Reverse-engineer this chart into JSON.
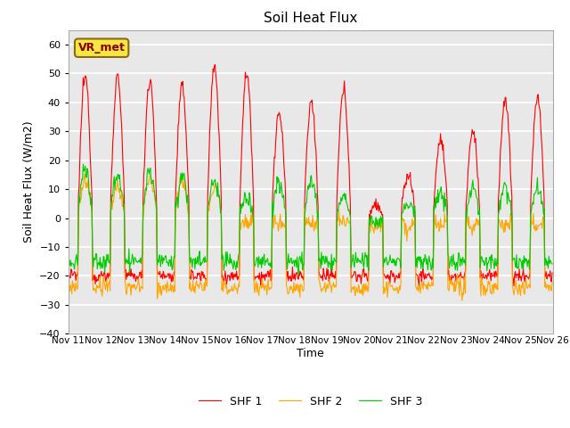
{
  "title": "Soil Heat Flux",
  "xlabel": "Time",
  "ylabel": "Soil Heat Flux (W/m2)",
  "ylim": [
    -40,
    65
  ],
  "yticks": [
    -40,
    -30,
    -20,
    -10,
    0,
    10,
    20,
    30,
    40,
    50,
    60
  ],
  "annotation": "VR_met",
  "fig_bg": "#ffffff",
  "plot_bg": "#e8e8e8",
  "grid_color": "#ffffff",
  "legend_labels": [
    "SHF 1",
    "SHF 2",
    "SHF 3"
  ],
  "legend_colors": [
    "#ff0000",
    "#ffa500",
    "#00cc00"
  ],
  "num_days": 15,
  "points_per_day": 48,
  "start_date": "2000-11-11",
  "shf1_peaks": [
    49,
    49,
    48,
    45,
    52,
    50,
    36,
    40,
    44,
    5,
    15,
    27,
    30,
    41,
    42
  ],
  "shf2_peaks": [
    13,
    11,
    13,
    12,
    11,
    -2,
    -2,
    -2,
    -2,
    -3,
    -3,
    -3,
    -3,
    -3,
    -3
  ],
  "shf3_peaks": [
    17,
    15,
    16,
    14,
    13,
    7,
    12,
    12,
    7,
    -2,
    5,
    9,
    11,
    11,
    10
  ],
  "shf1_night": -20,
  "shf2_night": -24,
  "shf3_night": -15,
  "seed": 12345
}
